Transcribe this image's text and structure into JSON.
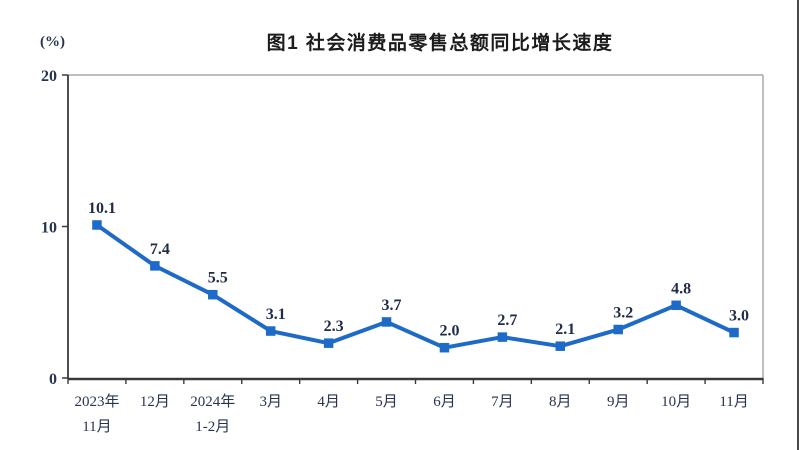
{
  "chart_data": {
    "type": "line",
    "title": "图1  社会消费品零售总额同比增长速度",
    "unit_label": "(%)",
    "categories": [
      "2023年\n11月",
      "12月",
      "2024年\n1-2月",
      "3月",
      "4月",
      "5月",
      "6月",
      "7月",
      "8月",
      "9月",
      "10月",
      "11月"
    ],
    "values": [
      10.1,
      7.4,
      5.5,
      3.1,
      2.3,
      3.7,
      2.0,
      2.7,
      2.1,
      3.2,
      4.8,
      3.0
    ],
    "data_labels": [
      "10.1",
      "7.4",
      "5.5",
      "3.1",
      "2.3",
      "3.7",
      "2.0",
      "2.7",
      "2.1",
      "3.2",
      "4.8",
      "3.0"
    ],
    "ylim": [
      0,
      20
    ],
    "yticks": [
      0,
      10,
      20
    ],
    "grid": false,
    "legend": "none",
    "marker": "square",
    "line_color": "#1e6ac8",
    "marker_color": "#1e6ac8",
    "label_color": "#1f2c48",
    "axis_color": "#3a3a3a",
    "plot_border_color": "#a9a9a9"
  }
}
